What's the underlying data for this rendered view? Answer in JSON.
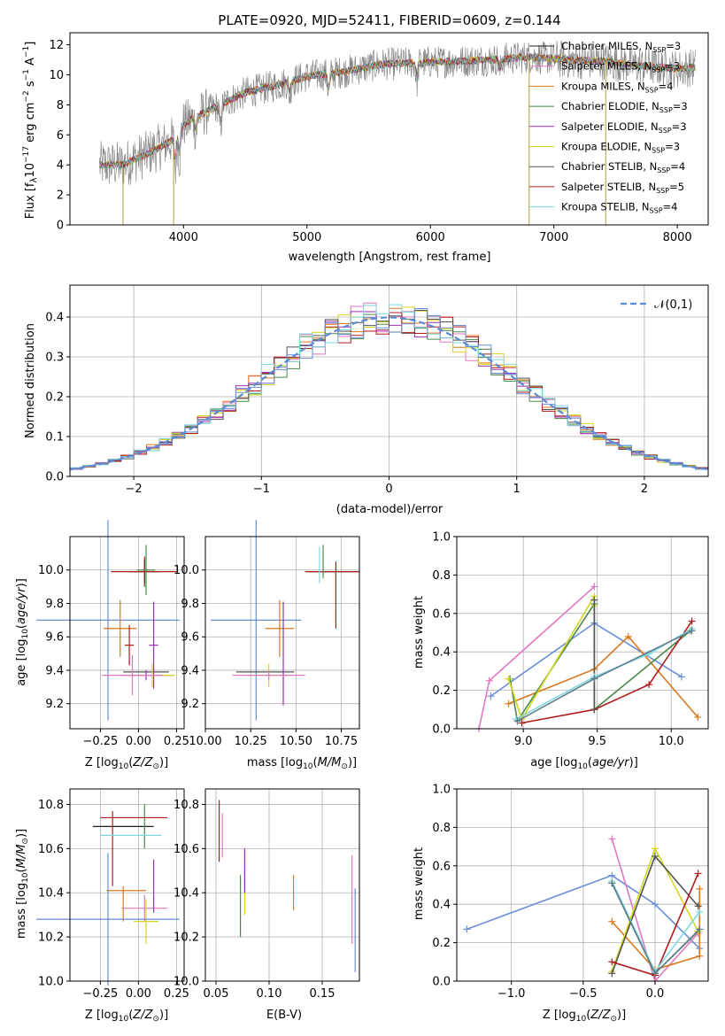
{
  "chart_data": [
    {
      "type": "line",
      "title": "PLATE=0920, MJD=52411, FIBERID=0609, z=0.144",
      "xlabel": "wavelength [Angstrom, rest frame]",
      "ylabel": "Flux [f_λ10^-17 erg cm^-2 s^-1 A^-1]",
      "xlim": [
        3080,
        8250
      ],
      "ylim": [
        0,
        12.8
      ],
      "xticks": [
        "4000",
        "5000",
        "6000",
        "7000",
        "8000"
      ],
      "yticks": [
        "0",
        "2",
        "4",
        "6",
        "8",
        "10",
        "12"
      ],
      "legend_position": "top-right",
      "series": [
        {
          "name": "Chabrier MILES, N_SSP=3",
          "color": "#1f1f1f"
        },
        {
          "name": "Salpeter MILES, N_SSP=3",
          "color": "#e377c2"
        },
        {
          "name": "Kroupa MILES, N_SSP=4",
          "color": "#d9781e"
        },
        {
          "name": "Chabrier ELODIE, N_SSP=3",
          "color": "#4a8a4a"
        },
        {
          "name": "Salpeter ELODIE, N_SSP=3",
          "color": "#9b30b5"
        },
        {
          "name": "Kroupa ELODIE, N_SSP=3",
          "color": "#d4d61e"
        },
        {
          "name": "Chabrier STELIB, N_SSP=4",
          "color": "#555555"
        },
        {
          "name": "Salpeter STELIB, N_SSP=5",
          "color": "#b01c1c"
        },
        {
          "name": "Kroupa STELIB, N_SSP=4",
          "color": "#7fd8e0"
        }
      ],
      "data_series": {
        "name": "data",
        "color": "#888888"
      },
      "continuum": {
        "x": [
          3320,
          3500,
          3700,
          3900,
          4000,
          4100,
          4300,
          4500,
          4800,
          5000,
          5300,
          5600,
          5900,
          6200,
          6500,
          6800,
          7100,
          7400,
          7700,
          8000,
          8150
        ],
        "y": [
          4.0,
          4.0,
          4.7,
          5.6,
          6.7,
          7.2,
          8.0,
          8.8,
          9.4,
          9.9,
          10.2,
          10.7,
          10.8,
          10.9,
          11.0,
          11.2,
          11.0,
          10.9,
          10.6,
          10.4,
          10.5
        ]
      }
    },
    {
      "type": "step",
      "xlabel": "(data-model)/error",
      "ylabel": "Normed distribution",
      "xlim": [
        -2.5,
        2.5
      ],
      "ylim": [
        0,
        0.48
      ],
      "xticks": [
        "−2",
        "−1",
        "0",
        "1",
        "2"
      ],
      "yticks": [
        "0.0",
        "0.1",
        "0.2",
        "0.3",
        "0.4"
      ],
      "grid": true,
      "legend_position": "top-right",
      "reference": {
        "name": "𝒩(0,1)",
        "color": "#5b8ad6"
      },
      "colors": [
        "#e377c2",
        "#d9781e",
        "#4a8a4a",
        "#9b30b5",
        "#d4d61e",
        "#555555",
        "#b01c1c",
        "#7fd8e0",
        "#6a8ed8"
      ]
    },
    {
      "type": "scatter",
      "xlabel": "Z [log10(Z/Z⊙)]",
      "ylabel": "age [log10(age/yr)]",
      "xlim": [
        -0.45,
        0.3
      ],
      "ylim": [
        9.05,
        10.2
      ],
      "xticks": [
        "−0.25",
        "0.00",
        "0.25"
      ],
      "yticks": [
        "9.2",
        "9.4",
        "9.6",
        "9.8",
        "10.0"
      ],
      "points": [
        {
          "x": 0.04,
          "y": 9.99,
          "xerr": 0.1,
          "yerr": 0.07,
          "color": "#1f1f1f"
        },
        {
          "x": 0.04,
          "y": 9.99,
          "xerr": 0.22,
          "yerr": 0.09,
          "color": "#b01c1c"
        },
        {
          "x": 0.05,
          "y": 10.0,
          "xerr": 0.06,
          "yerr": 0.15,
          "color": "#4a8a4a"
        },
        {
          "x": -0.2,
          "y": 9.7,
          "xerr": 0.47,
          "yerr": 0.6,
          "color": "#6a8ed8"
        },
        {
          "x": -0.12,
          "y": 9.65,
          "xerr": 0.11,
          "yerr": 0.17,
          "color": "#d9781e"
        },
        {
          "x": -0.06,
          "y": 9.55,
          "xerr": 0.03,
          "yerr": 0.12,
          "color": "#b01c1c"
        },
        {
          "x": 0.05,
          "y": 9.39,
          "xerr": 0.15,
          "yerr": 0.0,
          "color": "#555555"
        },
        {
          "x": 0.05,
          "y": 9.37,
          "xerr": 0.17,
          "yerr": 0.03,
          "color": "#9b30b5"
        },
        {
          "x": 0.1,
          "y": 9.55,
          "xerr": 0.03,
          "yerr": 0.26,
          "color": "#9b30b5"
        },
        {
          "x": 0.09,
          "y": 9.37,
          "xerr": 0.15,
          "yerr": 0.07,
          "color": "#d4d61e"
        },
        {
          "x": -0.04,
          "y": 9.37,
          "xerr": 0.2,
          "yerr": 0.12,
          "color": "#e377c2"
        }
      ]
    },
    {
      "type": "scatter",
      "xlabel": "mass [log10(M/M⊙)]",
      "ylabel": "",
      "xlim": [
        10.0,
        10.85
      ],
      "ylim": [
        9.05,
        10.2
      ],
      "xticks": [
        "10.00",
        "10.25",
        "10.50",
        "10.75"
      ],
      "yticks": [
        "9.2",
        "9.4",
        "9.6",
        "9.8",
        "10.0"
      ],
      "points": [
        {
          "x": 10.7,
          "y": 9.99,
          "xerr": 0.13,
          "yerr": 0.0,
          "color": "#1f1f1f"
        },
        {
          "x": 10.7,
          "y": 9.99,
          "xerr": 0.15,
          "yerr": 0.0,
          "color": "#b01c1c"
        },
        {
          "x": 10.72,
          "y": 9.85,
          "xerr": 0.0,
          "yerr": 0.2,
          "color": "#b01c1c"
        },
        {
          "x": 10.65,
          "y": 10.05,
          "xerr": 0.0,
          "yerr": 0.1,
          "color": "#4a8a4a"
        },
        {
          "x": 10.63,
          "y": 10.03,
          "xerr": 0.0,
          "yerr": 0.11,
          "color": "#7fd8e0"
        },
        {
          "x": 10.28,
          "y": 9.7,
          "xerr": 0.25,
          "yerr": 0.6,
          "color": "#6a8ed8"
        },
        {
          "x": 10.41,
          "y": 9.65,
          "xerr": 0.08,
          "yerr": 0.17,
          "color": "#d9781e"
        },
        {
          "x": 10.33,
          "y": 9.39,
          "xerr": 0.16,
          "yerr": 0.0,
          "color": "#555555"
        },
        {
          "x": 10.43,
          "y": 9.5,
          "xerr": 0.0,
          "yerr": 0.31,
          "color": "#9b30b5"
        },
        {
          "x": 10.35,
          "y": 9.37,
          "xerr": 0.12,
          "yerr": 0.07,
          "color": "#d4d61e"
        },
        {
          "x": 10.35,
          "y": 9.37,
          "xerr": 0.2,
          "yerr": 0.03,
          "color": "#e377c2"
        }
      ]
    },
    {
      "type": "line",
      "xlabel": "age [log10(age/yr)]",
      "ylabel": "mass weight",
      "xlim": [
        8.55,
        10.25
      ],
      "ylim": [
        0,
        1.0
      ],
      "xticks": [
        "9.0",
        "9.5",
        "10.0"
      ],
      "yticks": [
        "0.0",
        "0.2",
        "0.4",
        "0.6",
        "0.8",
        "1.0"
      ],
      "grid": true,
      "series": [
        {
          "color": "#e377c2",
          "x": [
            8.7,
            8.77,
            9.48
          ],
          "y": [
            0.0,
            0.25,
            0.74
          ]
        },
        {
          "color": "#6a8ed8",
          "x": [
            8.78,
            9.48,
            10.07
          ],
          "y": [
            0.17,
            0.55,
            0.27
          ]
        },
        {
          "color": "#d9781e",
          "x": [
            8.9,
            9.48,
            9.71,
            10.18
          ],
          "y": [
            0.13,
            0.31,
            0.48,
            0.06
          ]
        },
        {
          "color": "#4a8a4a",
          "x": [
            8.91,
            8.96,
            9.48,
            9.48,
            10.13
          ],
          "y": [
            0.26,
            0.04,
            0.65,
            0.1,
            0.51
          ]
        },
        {
          "color": "#d4d61e",
          "x": [
            8.9,
            8.99,
            9.48,
            9.48
          ],
          "y": [
            0.26,
            0.05,
            0.69,
            0.64
          ]
        },
        {
          "color": "#b01c1c",
          "x": [
            8.99,
            9.48,
            9.85,
            10.14
          ],
          "y": [
            0.03,
            0.1,
            0.23,
            0.56
          ]
        },
        {
          "color": "#555555",
          "x": [
            9.48,
            9.48
          ],
          "y": [
            0.1,
            0.67
          ]
        },
        {
          "color": "#7fd8e0",
          "x": [
            8.95,
            9.48,
            9.85,
            10.14
          ],
          "y": [
            0.05,
            0.27,
            0.39,
            0.52
          ]
        },
        {
          "color": "#5f7d8a",
          "x": [
            8.96,
            9.48,
            10.14
          ],
          "y": [
            0.04,
            0.26,
            0.51
          ]
        }
      ]
    },
    {
      "type": "scatter",
      "xlabel": "Z [log10(Z/Z⊙)]",
      "ylabel": "mass [log10(M/M⊙)]",
      "xlim": [
        -0.45,
        0.3
      ],
      "ylim": [
        10.0,
        10.87
      ],
      "xticks": [
        "−0.25",
        "0.00",
        "0.25"
      ],
      "yticks": [
        "10.0",
        "10.2",
        "10.4",
        "10.6",
        "10.8"
      ],
      "points": [
        {
          "x": -0.1,
          "y": 10.7,
          "xerr": 0.2,
          "yerr": 0.0,
          "color": "#1f1f1f"
        },
        {
          "x": 0.04,
          "y": 10.7,
          "xerr": 0.0,
          "yerr": 0.1,
          "color": "#4a8a4a"
        },
        {
          "x": -0.03,
          "y": 10.74,
          "xerr": 0.22,
          "yerr": 0.0,
          "color": "#b01c1c"
        },
        {
          "x": -0.17,
          "y": 10.6,
          "xerr": 0.0,
          "yerr": 0.17,
          "color": "#b01c1c"
        },
        {
          "x": -0.05,
          "y": 10.66,
          "xerr": 0.2,
          "yerr": 0.0,
          "color": "#7fd8e0"
        },
        {
          "x": -0.08,
          "y": 10.41,
          "xerr": 0.13,
          "yerr": 0.0,
          "color": "#d9781e"
        },
        {
          "x": -0.1,
          "y": 10.35,
          "xerr": 0.0,
          "yerr": 0.08,
          "color": "#d9781e"
        },
        {
          "x": 0.04,
          "y": 10.33,
          "xerr": 0.15,
          "yerr": 0.06,
          "color": "#e377c2"
        },
        {
          "x": 0.1,
          "y": 10.43,
          "xerr": 0.0,
          "yerr": 0.12,
          "color": "#9b30b5"
        },
        {
          "x": 0.05,
          "y": 10.27,
          "xerr": 0.08,
          "yerr": 0.1,
          "color": "#d4d61e"
        },
        {
          "x": -0.2,
          "y": 10.28,
          "xerr": 0.47,
          "yerr": 0.3,
          "color": "#6a8ed8"
        }
      ]
    },
    {
      "type": "scatter",
      "xlabel": "E(B-V)",
      "ylabel": "",
      "xlim": [
        0.04,
        0.185
      ],
      "ylim": [
        10.0,
        10.87
      ],
      "xticks": [
        "0.05",
        "0.10",
        "0.15"
      ],
      "yticks": [
        "10.0",
        "10.2",
        "10.4",
        "10.6",
        "10.8"
      ],
      "points": [
        {
          "x": 0.053,
          "y": 10.68,
          "yerr": 0.14,
          "color": "#b01c1c"
        },
        {
          "x": 0.056,
          "y": 10.66,
          "yerr": 0.1,
          "color": "#e377c2"
        },
        {
          "x": 0.073,
          "y": 10.34,
          "yerr": 0.14,
          "color": "#4a8a4a"
        },
        {
          "x": 0.077,
          "y": 10.4,
          "yerr": 0.1,
          "color": "#d4d61e"
        },
        {
          "x": 0.077,
          "y": 10.5,
          "yerr": 0.1,
          "color": "#9b30b5"
        },
        {
          "x": 0.123,
          "y": 10.4,
          "yerr": 0.08,
          "color": "#d9781e"
        },
        {
          "x": 0.178,
          "y": 10.37,
          "yerr": 0.2,
          "color": "#e377c2"
        },
        {
          "x": 0.181,
          "y": 10.23,
          "yerr": 0.19,
          "color": "#6a8ed8"
        }
      ]
    },
    {
      "type": "line",
      "xlabel": "Z [log10(Z/Z⊙)]",
      "ylabel": "mass weight",
      "xlim": [
        -1.38,
        0.37
      ],
      "ylim": [
        0,
        1.0
      ],
      "xticks": [
        "−1.0",
        "−0.5",
        "0.0"
      ],
      "yticks": [
        "0.0",
        "0.2",
        "0.4",
        "0.6",
        "0.8",
        "1.0"
      ],
      "grid": true,
      "series": [
        {
          "color": "#6a8ed8",
          "x": [
            -1.31,
            -0.3,
            0.0,
            0.31
          ],
          "y": [
            0.27,
            0.55,
            0.4,
            0.17
          ]
        },
        {
          "color": "#e377c2",
          "x": [
            -0.3,
            0.0,
            0.3
          ],
          "y": [
            0.74,
            0.0,
            0.25
          ]
        },
        {
          "color": "#d9781e",
          "x": [
            -0.3,
            0.0,
            0.31,
            0.31
          ],
          "y": [
            0.31,
            0.06,
            0.13,
            0.48
          ]
        },
        {
          "color": "#4a8a4a",
          "x": [
            -0.3,
            0.0,
            0.3
          ],
          "y": [
            0.51,
            0.04,
            0.26
          ]
        },
        {
          "color": "#d4d61e",
          "x": [
            -0.3,
            0.0,
            0.3
          ],
          "y": [
            0.05,
            0.69,
            0.26
          ]
        },
        {
          "color": "#555555",
          "x": [
            -0.3,
            0.0,
            0.3
          ],
          "y": [
            0.04,
            0.65,
            0.39
          ]
        },
        {
          "color": "#b01c1c",
          "x": [
            -0.3,
            0.0,
            0.3
          ],
          "y": [
            0.1,
            0.03,
            0.56
          ]
        },
        {
          "color": "#7fd8e0",
          "x": [
            -0.3,
            0.0,
            0.31
          ],
          "y": [
            0.52,
            0.05,
            0.36
          ]
        },
        {
          "color": "#5f7d8a",
          "x": [
            -0.3,
            0.0,
            0.31
          ],
          "y": [
            0.51,
            0.04,
            0.27
          ]
        }
      ]
    }
  ]
}
